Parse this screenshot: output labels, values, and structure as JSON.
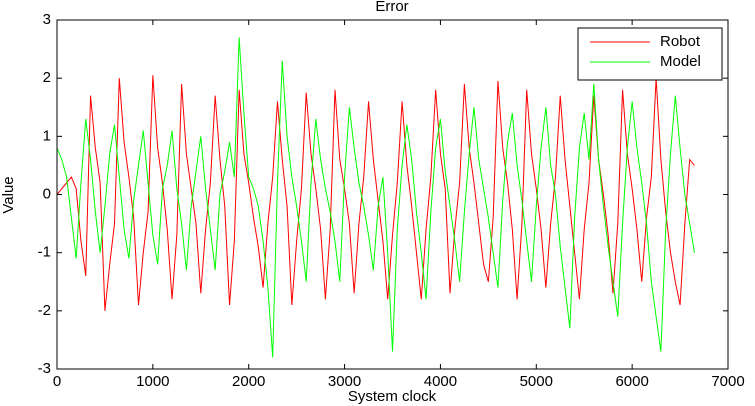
{
  "chart_data": {
    "type": "line",
    "title": "Error",
    "xlabel": "System clock",
    "ylabel": "Value",
    "x": [
      0,
      50,
      100,
      150,
      200,
      250,
      300,
      350,
      400,
      450,
      500,
      550,
      600,
      650,
      700,
      750,
      800,
      850,
      900,
      950,
      1000,
      1050,
      1100,
      1150,
      1200,
      1250,
      1300,
      1350,
      1400,
      1450,
      1500,
      1550,
      1600,
      1650,
      1700,
      1750,
      1800,
      1850,
      1900,
      1950,
      2000,
      2050,
      2100,
      2150,
      2200,
      2250,
      2300,
      2350,
      2400,
      2450,
      2500,
      2550,
      2600,
      2650,
      2700,
      2750,
      2800,
      2850,
      2900,
      2950,
      3000,
      3050,
      3100,
      3150,
      3200,
      3250,
      3300,
      3350,
      3400,
      3450,
      3500,
      3550,
      3600,
      3650,
      3700,
      3750,
      3800,
      3850,
      3900,
      3950,
      4000,
      4050,
      4100,
      4150,
      4200,
      4250,
      4300,
      4350,
      4400,
      4450,
      4500,
      4550,
      4600,
      4650,
      4700,
      4750,
      4800,
      4850,
      4900,
      4950,
      5000,
      5050,
      5100,
      5150,
      5200,
      5250,
      5300,
      5350,
      5400,
      5450,
      5500,
      5550,
      5600,
      5650,
      5700,
      5750,
      5800,
      5850,
      5900,
      5950,
      6000,
      6050,
      6100,
      6150,
      6200,
      6250,
      6300,
      6350,
      6400,
      6450,
      6500,
      6550,
      6600,
      6650
    ],
    "series": [
      {
        "name": "Robot",
        "color": "#ff0000",
        "values": [
          0,
          0.1,
          0.2,
          0.3,
          0.1,
          -0.8,
          -1.4,
          1.7,
          0.8,
          0.2,
          -2.0,
          -1.2,
          -0.5,
          2.0,
          0.9,
          0.3,
          -0.4,
          -1.9,
          -1.0,
          -0.3,
          2.05,
          0.8,
          0.2,
          -0.6,
          -1.8,
          -0.7,
          1.9,
          0.7,
          0.1,
          -0.5,
          -1.7,
          -0.6,
          0.2,
          1.7,
          0.6,
          -0.2,
          -1.9,
          -0.8,
          1.8,
          0.7,
          0.2,
          -0.4,
          -0.9,
          -1.6,
          -0.5,
          0.3,
          1.6,
          0.6,
          -0.2,
          -1.9,
          -0.8,
          0.1,
          1.75,
          0.7,
          0.1,
          -0.6,
          -1.8,
          -0.6,
          1.8,
          0.6,
          0.1,
          -0.5,
          -1.7,
          -0.5,
          0.3,
          1.6,
          0.6,
          -0.1,
          -0.8,
          -1.8,
          -0.7,
          0.2,
          1.6,
          0.5,
          -0.2,
          -1.0,
          -1.8,
          -0.6,
          0.3,
          1.8,
          0.7,
          0.1,
          -1.7,
          -0.6,
          0.2,
          1.9,
          0.8,
          0.2,
          -0.5,
          -1.2,
          -1.5,
          -0.4,
          1.95,
          0.8,
          0.2,
          -0.6,
          -1.8,
          -0.5,
          1.8,
          0.7,
          0.1,
          -0.6,
          -1.6,
          -0.5,
          0.3,
          1.7,
          0.6,
          -0.2,
          -1.0,
          -1.8,
          -0.6,
          0.2,
          1.7,
          0.6,
          0.0,
          -0.7,
          -1.7,
          -0.5,
          1.8,
          0.7,
          0.1,
          -0.6,
          -1.5,
          -0.4,
          0.3,
          2.0,
          0.6,
          -0.3,
          -1.0,
          -1.5,
          -1.9,
          -0.5,
          0.6,
          0.5
        ]
      },
      {
        "name": "Model",
        "color": "#00ff00",
        "values": [
          0.8,
          0.6,
          0.3,
          -0.4,
          -1.1,
          0.2,
          1.3,
          0.6,
          -0.3,
          -1.0,
          -0.2,
          0.7,
          1.2,
          0.3,
          -0.6,
          -1.1,
          -0.1,
          0.5,
          1.1,
          0.2,
          -0.7,
          -1.2,
          0.1,
          0.5,
          1.1,
          0.1,
          -0.5,
          -1.3,
          -0.2,
          0.4,
          1.0,
          0.1,
          -0.6,
          -1.3,
          0.0,
          0.4,
          0.9,
          0.3,
          2.7,
          1.4,
          0.3,
          0.1,
          -0.2,
          -0.8,
          -1.6,
          -2.8,
          0.2,
          2.3,
          1.0,
          0.3,
          -0.2,
          -0.8,
          -1.5,
          0.2,
          1.3,
          0.6,
          0.1,
          -0.3,
          -0.8,
          -1.5,
          0.3,
          1.5,
          0.8,
          0.2,
          -0.2,
          -0.7,
          -1.3,
          -0.2,
          0.3,
          -1.0,
          -2.7,
          -0.6,
          0.5,
          1.2,
          0.6,
          -0.3,
          -1.0,
          -1.8,
          -0.3,
          0.8,
          1.3,
          0.4,
          -0.2,
          -0.8,
          -1.5,
          -0.3,
          0.7,
          1.5,
          0.6,
          0.1,
          -0.4,
          -1.0,
          -1.6,
          -0.1,
          0.9,
          1.4,
          0.5,
          -0.1,
          -0.8,
          -1.5,
          -0.2,
          0.8,
          1.5,
          0.5,
          0.0,
          -0.9,
          -1.6,
          -2.3,
          -0.4,
          0.8,
          1.4,
          0.6,
          1.9,
          0.6,
          -0.2,
          -0.9,
          -1.5,
          -2.1,
          -0.5,
          0.8,
          1.6,
          0.8,
          0.2,
          -0.5,
          -1.5,
          -2.1,
          -2.7,
          -0.6,
          0.7,
          1.7,
          0.8,
          0.0,
          -0.5,
          -1.0
        ]
      }
    ],
    "xlim": [
      0,
      7000
    ],
    "ylim": [
      -3,
      3
    ],
    "xticks": [
      0,
      1000,
      2000,
      3000,
      4000,
      5000,
      6000,
      7000
    ],
    "yticks": [
      -3,
      -2,
      -1,
      0,
      1,
      2,
      3
    ],
    "legend": "upper right"
  }
}
